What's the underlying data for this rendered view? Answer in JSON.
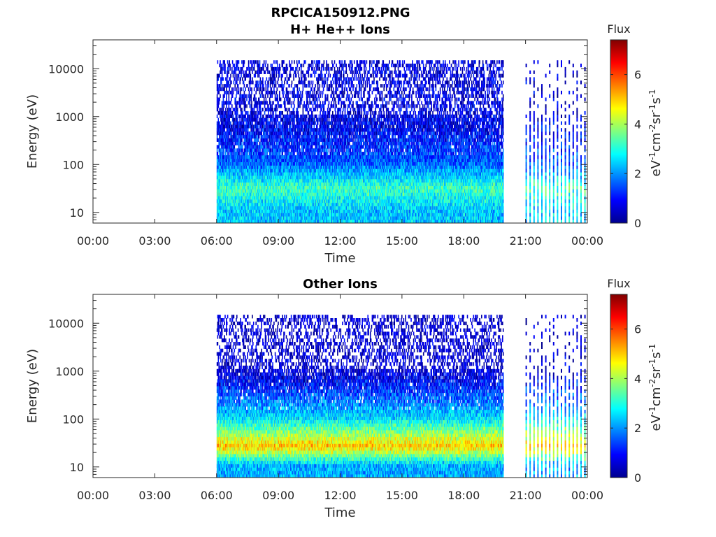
{
  "figure": {
    "file_title": "RPCICA150912.PNG"
  },
  "chart_data": [
    {
      "type": "heatmap",
      "title": "H+ He++ Ions",
      "xlabel": "Time",
      "ylabel": "Energy (eV)",
      "y_scale": "log",
      "ylim": [
        6,
        40000
      ],
      "xlim_hours": [
        0,
        24
      ],
      "x_ticks": [
        "00:00",
        "03:00",
        "06:00",
        "09:00",
        "12:00",
        "15:00",
        "18:00",
        "21:00",
        "00:00"
      ],
      "y_ticks": [
        {
          "value": 10,
          "label": "10"
        },
        {
          "value": 100,
          "label": "100"
        },
        {
          "value": 1000,
          "label": "1000"
        },
        {
          "value": 10000,
          "label": "10000"
        }
      ],
      "data_windows_hours": [
        [
          6.0,
          19.9
        ],
        [
          21.0,
          23.95
        ]
      ],
      "data_gap_hours": [
        19.9,
        21.0
      ],
      "mode_after_gap": "intermittent sweeps",
      "flux_profile": [
        {
          "energy_eV": 10,
          "flux": 2.4
        },
        {
          "energy_eV": 30,
          "flux": 3.2
        },
        {
          "energy_eV": 100,
          "flux": 1.6
        },
        {
          "energy_eV": 1000,
          "flux": 0.6
        },
        {
          "energy_eV": 10000,
          "flux": 0.5
        }
      ],
      "colorbar": {
        "label": "Flux",
        "unit_label": "eV-1cm-2sr-1s-1",
        "range": [
          0,
          7.4
        ],
        "ticks": [
          0,
          2,
          4,
          6
        ]
      }
    },
    {
      "type": "heatmap",
      "title": "Other Ions",
      "xlabel": "Time",
      "ylabel": "Energy (eV)",
      "y_scale": "log",
      "ylim": [
        6,
        40000
      ],
      "xlim_hours": [
        0,
        24
      ],
      "x_ticks": [
        "00:00",
        "03:00",
        "06:00",
        "09:00",
        "12:00",
        "15:00",
        "18:00",
        "21:00",
        "00:00"
      ],
      "y_ticks": [
        {
          "value": 10,
          "label": "10"
        },
        {
          "value": 100,
          "label": "100"
        },
        {
          "value": 1000,
          "label": "1000"
        },
        {
          "value": 10000,
          "label": "10000"
        }
      ],
      "data_windows_hours": [
        [
          6.0,
          19.9
        ],
        [
          21.0,
          23.95
        ]
      ],
      "data_gap_hours": [
        19.9,
        21.0
      ],
      "mode_after_gap": "intermittent sweeps",
      "flux_profile": [
        {
          "energy_eV": 10,
          "flux": 2.2
        },
        {
          "energy_eV": 25,
          "flux": 5.0
        },
        {
          "energy_eV": 100,
          "flux": 2.5
        },
        {
          "energy_eV": 1000,
          "flux": 0.4
        },
        {
          "energy_eV": 10000,
          "flux": 0.3
        }
      ],
      "colorbar": {
        "label": "Flux",
        "unit_label": "eV-1cm-2sr-1s-1",
        "range": [
          0,
          7.4
        ],
        "ticks": [
          0,
          2,
          4,
          6
        ]
      }
    }
  ]
}
